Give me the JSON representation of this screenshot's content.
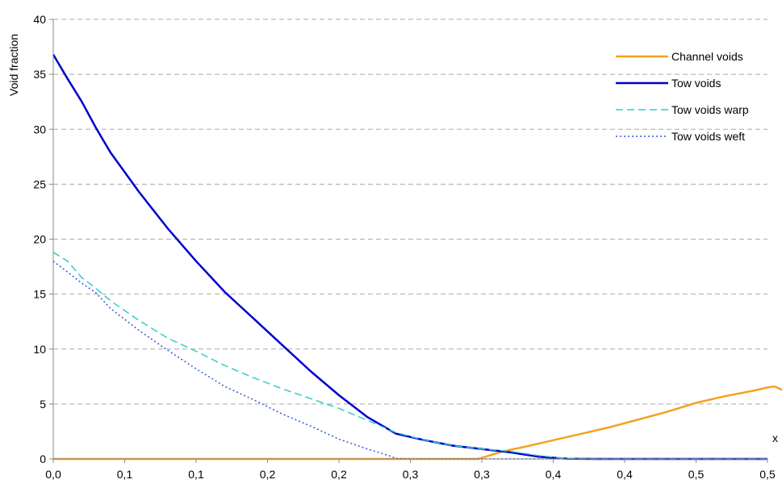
{
  "chart_data": {
    "type": "line",
    "title": "",
    "xlabel": "x",
    "ylabel": "Void fraction",
    "xlim": [
      0,
      0.5
    ],
    "ylim": [
      0,
      40
    ],
    "grid": "horizontal dashed",
    "legend": "top-right",
    "x_ticks": [
      0,
      0.05,
      0.1,
      0.15,
      0.2,
      0.25,
      0.3,
      0.35,
      0.4,
      0.45,
      0.5
    ],
    "x_tick_labels": [
      "0,0",
      "0,1",
      "0,1",
      "0,2",
      "0,2",
      "0,3",
      "0,3",
      "0,4",
      "0,4",
      "0,5",
      "0,5"
    ],
    "y_ticks": [
      0,
      5,
      10,
      15,
      20,
      25,
      30,
      35,
      40
    ],
    "y_tick_labels": [
      "0",
      "5",
      "10",
      "15",
      "20",
      "25",
      "30",
      "35",
      "40"
    ],
    "series": [
      {
        "name": "Channel voids",
        "color": "#F5A21E",
        "style": "solid",
        "points": [
          [
            0,
            0
          ],
          [
            0.05,
            0
          ],
          [
            0.1,
            0
          ],
          [
            0.15,
            0
          ],
          [
            0.2,
            0
          ],
          [
            0.25,
            0
          ],
          [
            0.2975,
            0
          ],
          [
            0.305,
            0.3
          ],
          [
            0.315,
            0.7
          ],
          [
            0.33,
            1.1
          ],
          [
            0.35,
            1.7
          ],
          [
            0.37,
            2.3
          ],
          [
            0.39,
            2.9
          ],
          [
            0.41,
            3.6
          ],
          [
            0.43,
            4.3
          ],
          [
            0.45,
            5.1
          ],
          [
            0.47,
            5.7
          ],
          [
            0.49,
            6.2
          ],
          [
            0.5,
            6.5
          ],
          [
            0.505,
            6.6
          ],
          [
            0.51,
            6.3
          ],
          [
            0.515,
            6.2
          ]
        ]
      },
      {
        "name": "Tow voids",
        "color": "#0000CC",
        "style": "solid",
        "points": [
          [
            0,
            36.8
          ],
          [
            0.01,
            34.6
          ],
          [
            0.02,
            32.5
          ],
          [
            0.03,
            30.1
          ],
          [
            0.04,
            27.9
          ],
          [
            0.06,
            24.3
          ],
          [
            0.08,
            21.0
          ],
          [
            0.1,
            18.0
          ],
          [
            0.12,
            15.2
          ],
          [
            0.14,
            12.8
          ],
          [
            0.16,
            10.4
          ],
          [
            0.18,
            8.0
          ],
          [
            0.2,
            5.8
          ],
          [
            0.22,
            3.8
          ],
          [
            0.24,
            2.3
          ],
          [
            0.26,
            1.7
          ],
          [
            0.28,
            1.2
          ],
          [
            0.3,
            0.9
          ],
          [
            0.32,
            0.6
          ],
          [
            0.34,
            0.2
          ],
          [
            0.36,
            0.02
          ],
          [
            0.38,
            0
          ],
          [
            0.5,
            0
          ]
        ]
      },
      {
        "name": "Tow voids warp",
        "color": "#33CCCC",
        "style": "dashed",
        "points": [
          [
            0,
            18.8
          ],
          [
            0.01,
            18.0
          ],
          [
            0.02,
            16.5
          ],
          [
            0.03,
            15.5
          ],
          [
            0.04,
            14.4
          ],
          [
            0.06,
            12.6
          ],
          [
            0.08,
            11.0
          ],
          [
            0.1,
            9.8
          ],
          [
            0.12,
            8.5
          ],
          [
            0.14,
            7.4
          ],
          [
            0.16,
            6.4
          ],
          [
            0.18,
            5.5
          ],
          [
            0.2,
            4.6
          ],
          [
            0.22,
            3.5
          ],
          [
            0.24,
            2.4
          ],
          [
            0.26,
            1.7
          ],
          [
            0.28,
            1.2
          ],
          [
            0.3,
            0.9
          ],
          [
            0.32,
            0.7
          ],
          [
            0.34,
            0.3
          ],
          [
            0.36,
            0.05
          ],
          [
            0.38,
            0
          ],
          [
            0.5,
            0
          ]
        ]
      },
      {
        "name": "Tow voids weft",
        "color": "#3355DD",
        "style": "dotted",
        "points": [
          [
            0,
            18.0
          ],
          [
            0.01,
            17.0
          ],
          [
            0.02,
            16.0
          ],
          [
            0.03,
            15.1
          ],
          [
            0.04,
            13.7
          ],
          [
            0.06,
            11.7
          ],
          [
            0.08,
            9.9
          ],
          [
            0.1,
            8.2
          ],
          [
            0.12,
            6.6
          ],
          [
            0.14,
            5.4
          ],
          [
            0.16,
            4.1
          ],
          [
            0.18,
            3.0
          ],
          [
            0.2,
            1.8
          ],
          [
            0.22,
            0.9
          ],
          [
            0.235,
            0.3
          ],
          [
            0.24,
            0.05
          ],
          [
            0.25,
            0
          ],
          [
            0.5,
            0
          ]
        ]
      }
    ]
  }
}
